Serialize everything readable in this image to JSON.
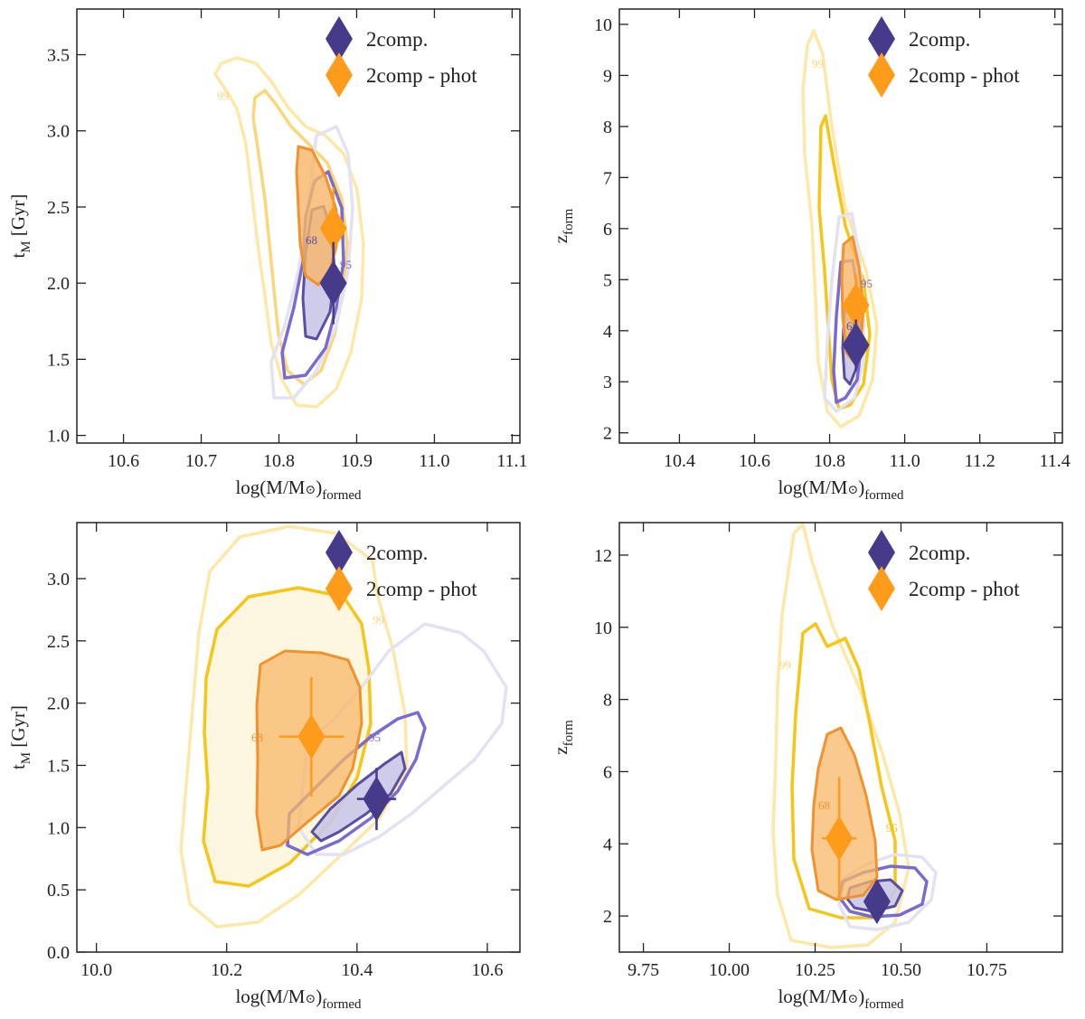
{
  "colors": {
    "comp2": "#463b8a",
    "comp2_dark": "#3b3270",
    "comp2_mid": "#6a5acd",
    "comp2_light": "#d8d9f0",
    "phot": "#ff9b1a",
    "phot_mid": "#f2a33a",
    "phot_gold": "#f5c518",
    "phot_light": "#fde8a8"
  },
  "chart_data": [
    {
      "type": "contour",
      "panel": "top-left",
      "xlabel": "log(M/M⊙)formed",
      "xlabel_main": "log(M/M",
      "xlabel_tail": ")",
      "xlabel_sub": "formed",
      "ylabel_main": "t",
      "ylabel_sub": "M",
      "ylabel_tail": " [Gyr]",
      "xlim": [
        10.54,
        11.11
      ],
      "ylim": [
        0.95,
        3.8
      ],
      "xticks": [
        "10.6",
        "10.7",
        "10.8",
        "10.9",
        "11.0",
        "11.1"
      ],
      "yticks": [
        "1.0",
        "1.5",
        "2.0",
        "2.5",
        "3.0",
        "3.5"
      ],
      "legend": [
        "2comp.",
        "2comp - phot"
      ],
      "legend_position": "top-right",
      "series": [
        {
          "name": "2comp.",
          "x": 10.87,
          "y": 2.0,
          "xerr": [
            0.0,
            0.0
          ],
          "yerr": [
            0.27,
            0.27
          ]
        },
        {
          "name": "2comp - phot",
          "x": 10.87,
          "y": 2.36,
          "xerr": [
            0.0,
            0.0
          ],
          "yerr": [
            0.27,
            0.27
          ]
        }
      ],
      "contour_levels": [
        "68",
        "95",
        "99"
      ]
    },
    {
      "type": "contour",
      "panel": "top-right",
      "xlabel": "log(M/M⊙)formed",
      "xlabel_main": "log(M/M",
      "xlabel_tail": ")",
      "xlabel_sub": "formed",
      "ylabel_main": "z",
      "ylabel_sub": "form",
      "ylabel_tail": "",
      "xlim": [
        10.24,
        11.42
      ],
      "ylim": [
        1.8,
        10.3
      ],
      "xticks": [
        "10.4",
        "10.6",
        "10.8",
        "11.0",
        "11.2",
        "11.4"
      ],
      "yticks": [
        "2",
        "3",
        "4",
        "5",
        "6",
        "7",
        "8",
        "9",
        "10"
      ],
      "legend": [
        "2comp.",
        "2comp - phot"
      ],
      "legend_position": "top-right",
      "series": [
        {
          "name": "2comp.",
          "x": 10.87,
          "y": 3.72,
          "xerr": [
            0.0,
            0.0
          ],
          "yerr": [
            0.5,
            0.5
          ]
        },
        {
          "name": "2comp - phot",
          "x": 10.87,
          "y": 4.5,
          "xerr": [
            0.0,
            0.0
          ],
          "yerr": [
            0.6,
            0.6
          ]
        }
      ],
      "contour_levels": [
        "68",
        "95",
        "99"
      ]
    },
    {
      "type": "contour",
      "panel": "bottom-left",
      "xlabel": "log(M/M⊙)formed",
      "xlabel_main": "log(M/M",
      "xlabel_tail": ")",
      "xlabel_sub": "formed",
      "ylabel_main": "t",
      "ylabel_sub": "M",
      "ylabel_tail": " [Gyr]",
      "xlim": [
        9.97,
        10.65
      ],
      "ylim": [
        0.0,
        3.45
      ],
      "xticks": [
        "10.0",
        "10.2",
        "10.4",
        "10.6"
      ],
      "yticks": [
        "0.0",
        "0.5",
        "1.0",
        "1.5",
        "2.0",
        "2.5",
        "3.0"
      ],
      "legend": [
        "2comp.",
        "2comp - phot"
      ],
      "legend_position": "top-right",
      "series": [
        {
          "name": "2comp.",
          "x": 10.43,
          "y": 1.23,
          "xerr": [
            0.03,
            0.03
          ],
          "yerr": [
            0.25,
            0.25
          ]
        },
        {
          "name": "2comp - phot",
          "x": 10.33,
          "y": 1.73,
          "xerr": [
            0.05,
            0.05
          ],
          "yerr": [
            0.48,
            0.48
          ]
        }
      ],
      "contour_levels": [
        "68",
        "95",
        "99"
      ]
    },
    {
      "type": "contour",
      "panel": "bottom-right",
      "xlabel": "log(M/M⊙)formed",
      "xlabel_main": "log(M/M",
      "xlabel_tail": ")",
      "xlabel_sub": "formed",
      "ylabel_main": "z",
      "ylabel_sub": "form",
      "ylabel_tail": "",
      "xlim": [
        9.68,
        10.97
      ],
      "ylim": [
        1.0,
        12.9
      ],
      "xticks": [
        "9.75",
        "10.00",
        "10.25",
        "10.50",
        "10.75"
      ],
      "yticks": [
        "2",
        "4",
        "6",
        "8",
        "10",
        "12"
      ],
      "legend": [
        "2comp.",
        "2comp - phot"
      ],
      "legend_position": "top-right",
      "series": [
        {
          "name": "2comp.",
          "x": 10.43,
          "y": 2.4,
          "xerr": [
            0.0,
            0.0
          ],
          "yerr": [
            0.4,
            0.4
          ]
        },
        {
          "name": "2comp - phot",
          "x": 10.32,
          "y": 4.15,
          "xerr": [
            0.05,
            0.05
          ],
          "yerr": [
            1.7,
            1.7
          ]
        }
      ],
      "contour_levels": [
        "68",
        "95",
        "99"
      ]
    }
  ]
}
